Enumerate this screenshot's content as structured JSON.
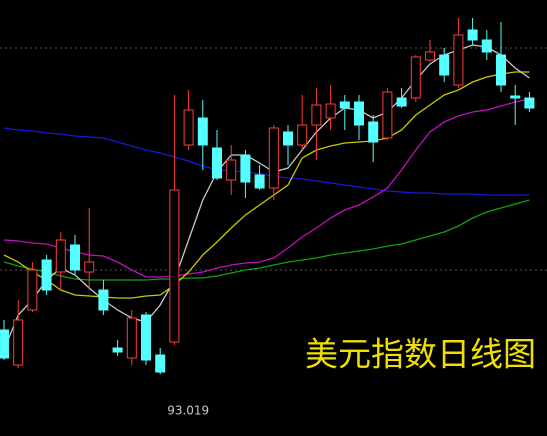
{
  "chart_data": {
    "type": "candlestick",
    "title": "美元指数日线图",
    "low_label": 93.019,
    "ylim": [
      92.71,
      94.89
    ],
    "up_color": "#ff3c3c",
    "down_color": "#54ffff",
    "open": [
      93.24,
      93.065,
      93.34,
      93.59,
      93.53,
      93.665,
      93.53,
      93.44,
      93.15,
      93.1,
      93.315,
      93.115,
      93.18,
      94.165,
      94.3,
      94.15,
      93.99,
      94.115,
      94.015,
      93.95,
      94.23,
      94.165,
      94.265,
      94.3,
      94.38,
      94.38,
      94.28,
      94.2,
      94.4,
      94.4,
      94.59,
      94.615,
      94.465,
      94.74,
      94.69,
      94.615,
      94.41,
      94.4
    ],
    "high": [
      93.29,
      93.39,
      93.58,
      93.615,
      93.73,
      93.715,
      93.85,
      93.49,
      93.19,
      93.34,
      93.33,
      93.15,
      94.415,
      94.44,
      94.39,
      94.24,
      94.165,
      94.14,
      94.065,
      94.265,
      94.265,
      94.415,
      94.45,
      94.465,
      94.415,
      94.415,
      94.315,
      94.45,
      94.45,
      94.615,
      94.69,
      94.65,
      94.8,
      94.8,
      94.74,
      94.78,
      94.465,
      94.43
    ],
    "low": [
      93.09,
      93.05,
      93.33,
      93.415,
      93.44,
      93.515,
      93.44,
      93.315,
      93.11,
      93.065,
      93.065,
      93.019,
      93.165,
      94.14,
      94.04,
      93.99,
      93.915,
      93.9,
      93.94,
      93.89,
      94.065,
      94.14,
      94.09,
      94.24,
      94.24,
      94.19,
      94.08,
      94.19,
      94.35,
      94.38,
      94.58,
      94.48,
      94.45,
      94.665,
      94.59,
      94.43,
      94.265,
      94.33
    ],
    "close": [
      93.1,
      93.29,
      93.54,
      93.44,
      93.69,
      93.54,
      93.58,
      93.34,
      93.13,
      93.3,
      93.09,
      93.03,
      93.94,
      94.34,
      94.165,
      94.0,
      94.09,
      93.98,
      93.95,
      94.25,
      94.165,
      94.265,
      94.365,
      94.37,
      94.35,
      94.265,
      94.18,
      94.43,
      94.36,
      94.605,
      94.63,
      94.515,
      94.715,
      94.69,
      94.63,
      94.465,
      94.4,
      94.35
    ],
    "lines": [
      {
        "color": "#1818d8",
        "values": [
          94.25,
          94.24,
          94.235,
          94.225,
          94.22,
          94.21,
          94.205,
          94.2,
          94.18,
          94.16,
          94.14,
          94.125,
          94.105,
          94.085,
          94.06,
          94.04,
          94.035,
          94.03,
          94.02,
          94.01,
          94.0,
          93.995,
          93.985,
          93.975,
          93.965,
          93.955,
          93.945,
          93.935,
          93.93,
          93.925,
          93.925,
          93.92,
          93.92,
          93.92,
          93.915,
          93.915,
          93.915,
          93.915
        ]
      },
      {
        "color": "#10a010",
        "values": [
          93.58,
          93.56,
          93.545,
          93.53,
          93.51,
          93.495,
          93.49,
          93.49,
          93.49,
          93.49,
          93.49,
          93.495,
          93.495,
          93.5,
          93.5,
          93.51,
          93.525,
          93.54,
          93.55,
          93.565,
          93.58,
          93.59,
          93.6,
          93.615,
          93.625,
          93.635,
          93.645,
          93.66,
          93.67,
          93.69,
          93.71,
          93.73,
          93.76,
          93.8,
          93.83,
          93.85,
          93.87,
          93.89
        ]
      },
      {
        "color": "#c010c0",
        "values": [
          93.69,
          93.685,
          93.675,
          93.67,
          93.65,
          93.63,
          93.615,
          93.61,
          93.58,
          93.54,
          93.505,
          93.505,
          93.51,
          93.52,
          93.53,
          93.55,
          93.565,
          93.575,
          93.58,
          93.6,
          93.65,
          93.705,
          93.75,
          93.8,
          93.84,
          93.865,
          93.905,
          93.95,
          94.04,
          94.14,
          94.23,
          94.28,
          94.31,
          94.33,
          94.34,
          94.36,
          94.38,
          94.395
        ]
      },
      {
        "color": "#c8c800",
        "values": [
          93.615,
          93.58,
          93.53,
          93.49,
          93.44,
          93.415,
          93.41,
          93.405,
          93.4,
          93.4,
          93.41,
          93.415,
          93.465,
          93.53,
          93.615,
          93.68,
          93.75,
          93.815,
          93.865,
          93.915,
          93.965,
          94.1,
          94.14,
          94.16,
          94.175,
          94.18,
          94.185,
          94.2,
          94.24,
          94.315,
          94.365,
          94.415,
          94.44,
          94.48,
          94.505,
          94.52,
          94.53,
          94.53
        ]
      },
      {
        "color": "#c8c8c8",
        "values": [
          93.14,
          93.315,
          93.39,
          93.49,
          93.55,
          93.515,
          93.45,
          93.39,
          93.34,
          93.3,
          93.28,
          93.365,
          93.49,
          93.69,
          93.89,
          94.03,
          94.115,
          94.115,
          94.075,
          94.03,
          94.05,
          94.14,
          94.23,
          94.3,
          94.35,
          94.34,
          94.3,
          94.33,
          94.4,
          94.49,
          94.57,
          94.615,
          94.64,
          94.665,
          94.655,
          94.615,
          94.55,
          94.5
        ]
      }
    ]
  }
}
